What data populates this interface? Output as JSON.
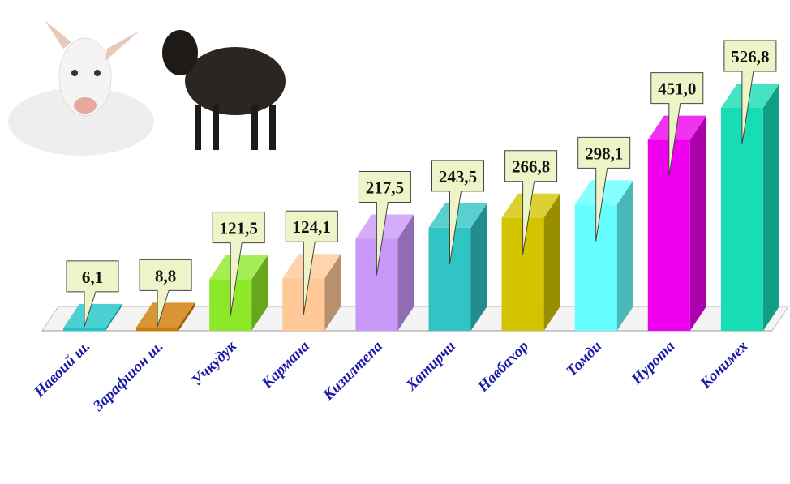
{
  "chart_data": {
    "type": "bar",
    "categories": [
      "Навоий ш.",
      "Зарафшон ш.",
      "Учкудук",
      "Кармана",
      "Кизилтепа",
      "Хатирчи",
      "Навбахор",
      "Томди",
      "Нурота",
      "Конимех"
    ],
    "values": [
      6.1,
      8.8,
      121.5,
      124.1,
      217.5,
      243.5,
      266.8,
      298.1,
      451.0,
      526.8
    ],
    "value_labels": [
      "6,1",
      "8,8",
      "121,5",
      "124,1",
      "217,5",
      "243,5",
      "266,8",
      "298,1",
      "451,0",
      "526,8"
    ],
    "colors": [
      "#1fc6c8",
      "#d07a00",
      "#8ee82a",
      "#ffc896",
      "#c898f8",
      "#30c4c4",
      "#d4c400",
      "#66ffff",
      "#ee00ee",
      "#18dcb4"
    ]
  }
}
